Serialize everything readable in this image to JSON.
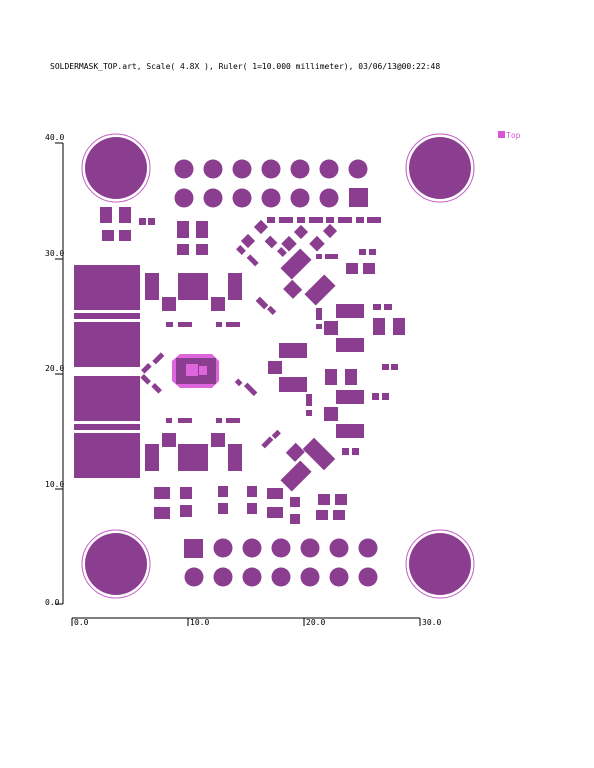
{
  "header": {
    "title": "SOLDERMASK_TOP.art, Scale( 4.8X ), Ruler( 1=10.000 millimeter), 03/06/13@00:22:48"
  },
  "legend": {
    "label": "Top",
    "color": "#d855d8"
  },
  "colors": {
    "pad": "#8b3e90",
    "highlight": "#dd66dd",
    "outline": "#c45cc4",
    "axis": "#000000"
  },
  "axes": {
    "y_ticks": [
      "40.0",
      "30.0",
      "20.0",
      "10.0",
      "0.0"
    ],
    "x_ticks": [
      "0.0",
      "10.0",
      "20.0",
      "30.0"
    ]
  }
}
